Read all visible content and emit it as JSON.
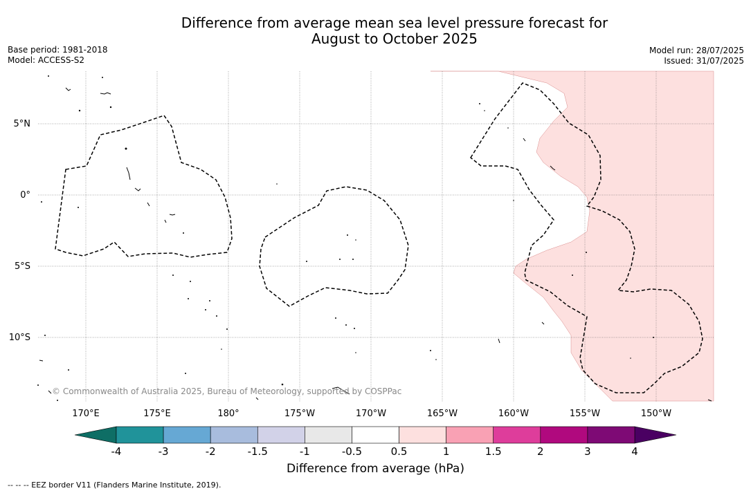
{
  "title": {
    "line1": "Difference from average mean sea level pressure forecast for",
    "line2": "August to October 2025"
  },
  "meta": {
    "base_period": "Base period: 1981-2018",
    "model": "Model: ACCESS-S2",
    "model_run": "Model run: 28/07/2025",
    "issued": "Issued: 31/07/2025"
  },
  "map": {
    "lat_ticks": [
      "5°N",
      "0°",
      "5°S",
      "10°S"
    ],
    "lon_ticks": [
      "170°E",
      "175°E",
      "180°",
      "175°W",
      "170°W",
      "165°W",
      "160°W",
      "155°W",
      "150°W"
    ],
    "copyright": "© Commonwealth of Australia 2025, Bureau of Meteorology, supported by COSPPac",
    "anomaly_fill_color": "#fde0df",
    "eez_style": "dashed black"
  },
  "colorbar": {
    "labels": [
      "-4",
      "-3",
      "-2",
      "-1.5",
      "-1",
      "-0.5",
      "0.5",
      "1",
      "1.5",
      "2",
      "3",
      "4"
    ],
    "colors": [
      "#0e6e65",
      "#20939a",
      "#66a8d4",
      "#a8bcdd",
      "#d2d2e8",
      "#e8e8e8",
      "#ffffff",
      "#fde0df",
      "#f9a1b4",
      "#de3d9b",
      "#b0097e",
      "#7e0a75",
      "#4a0062"
    ],
    "label": "Difference from average (hPa)"
  },
  "footnote": "--  --  -- EEZ border V11 (Flanders Marine Institute, 2019)."
}
